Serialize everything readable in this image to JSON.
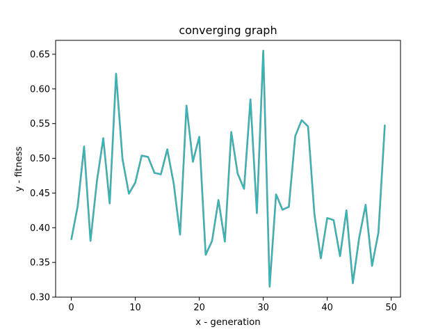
{
  "chart_data": {
    "type": "line",
    "title": "converging graph",
    "xlabel": "x - generation",
    "ylabel": "y - fitness",
    "xlim": [
      -2.45,
      51.45
    ],
    "ylim": [
      0.3,
      0.67
    ],
    "x_ticks": [
      0,
      10,
      20,
      30,
      40,
      50
    ],
    "y_ticks": [
      0.3,
      0.35,
      0.4,
      0.45,
      0.5,
      0.55,
      0.6,
      0.65
    ],
    "x_tick_labels": [
      "0",
      "10",
      "20",
      "30",
      "40",
      "50"
    ],
    "y_tick_labels": [
      "0.30",
      "0.35",
      "0.40",
      "0.45",
      "0.50",
      "0.55",
      "0.60",
      "0.65"
    ],
    "grid": false,
    "legend": "none",
    "series": [
      {
        "color": "#2bbdbd",
        "under_color": "#7f7f7f",
        "x": [
          0,
          1,
          2,
          3,
          4,
          5,
          6,
          7,
          8,
          9,
          10,
          11,
          12,
          13,
          14,
          15,
          16,
          17,
          18,
          19,
          20,
          21,
          22,
          23,
          24,
          25,
          26,
          27,
          28,
          29,
          30,
          31,
          32,
          33,
          34,
          35,
          36,
          37,
          38,
          39,
          40,
          41,
          42,
          43,
          44,
          45,
          46,
          47,
          48,
          49
        ],
        "y": [
          0.383,
          0.431,
          0.517,
          0.381,
          0.467,
          0.529,
          0.435,
          0.622,
          0.499,
          0.449,
          0.465,
          0.504,
          0.502,
          0.479,
          0.477,
          0.513,
          0.464,
          0.39,
          0.576,
          0.495,
          0.531,
          0.361,
          0.381,
          0.44,
          0.38,
          0.538,
          0.478,
          0.456,
          0.585,
          0.421,
          0.655,
          0.315,
          0.448,
          0.426,
          0.43,
          0.532,
          0.555,
          0.546,
          0.419,
          0.356,
          0.414,
          0.411,
          0.359,
          0.425,
          0.32,
          0.386,
          0.433,
          0.345,
          0.393,
          0.548
        ]
      }
    ]
  }
}
